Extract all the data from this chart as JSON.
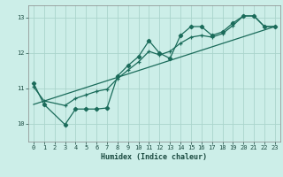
{
  "xlabel": "Humidex (Indice chaleur)",
  "bg_color": "#cceee8",
  "grid_color": "#aad4cc",
  "line_color": "#1a6b5a",
  "xlim": [
    -0.5,
    23.5
  ],
  "ylim": [
    9.5,
    13.35
  ],
  "xticks": [
    0,
    1,
    2,
    3,
    4,
    5,
    6,
    7,
    8,
    9,
    10,
    11,
    12,
    13,
    14,
    15,
    16,
    17,
    18,
    19,
    20,
    21,
    22,
    23
  ],
  "yticks": [
    10,
    11,
    12,
    13
  ],
  "main_x": [
    0,
    1,
    3,
    4,
    5,
    6,
    7,
    8,
    9,
    10,
    11,
    12,
    13,
    14,
    15,
    16,
    17,
    18,
    19,
    20,
    21,
    22,
    23
  ],
  "main_y": [
    11.15,
    10.55,
    9.98,
    10.42,
    10.42,
    10.42,
    10.45,
    11.35,
    11.65,
    11.9,
    12.35,
    12.0,
    11.85,
    12.5,
    12.75,
    12.75,
    12.5,
    12.6,
    12.85,
    13.05,
    13.05,
    12.75,
    12.75
  ],
  "trend1_x": [
    0,
    1,
    3,
    4,
    5,
    6,
    7,
    8,
    9,
    10,
    11,
    12,
    13,
    14,
    15,
    16,
    17,
    18,
    19,
    20,
    21,
    22,
    23
  ],
  "trend1_y": [
    11.05,
    10.65,
    10.52,
    10.72,
    10.82,
    10.92,
    10.98,
    11.28,
    11.52,
    11.75,
    12.05,
    11.95,
    12.05,
    12.28,
    12.45,
    12.5,
    12.45,
    12.55,
    12.78,
    13.05,
    13.05,
    12.75,
    12.75
  ],
  "trend2_x": [
    0,
    23
  ],
  "trend2_y": [
    10.55,
    12.75
  ]
}
